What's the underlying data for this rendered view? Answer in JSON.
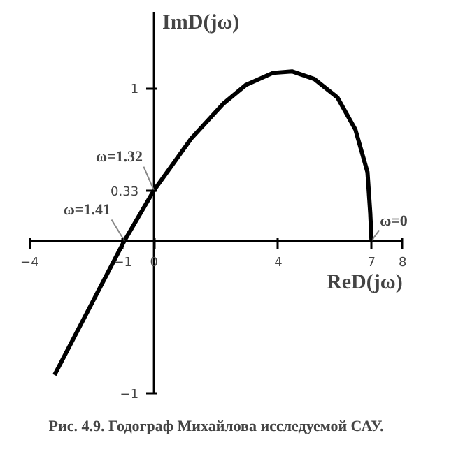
{
  "chart_data": {
    "type": "line",
    "xlabel": "ReD(jω)",
    "ylabel": "ImD(jω)",
    "series": [
      {
        "color": "#000000",
        "x": [
          7,
          6.96,
          6.87,
          6.48,
          5.9,
          5.16,
          4.44,
          3.83,
          2.95,
          2.24,
          1.2,
          0,
          -0.95,
          -3.2
        ],
        "values": [
          0,
          0.18,
          0.45,
          0.73,
          0.94,
          1.06,
          1.11,
          1.1,
          1.02,
          0.9,
          0.67,
          0.33,
          0,
          -0.88
        ]
      }
    ],
    "xlim": [
      -4,
      8
    ],
    "ylim": [
      -1,
      1.5
    ],
    "xticks": [
      -4,
      -1,
      0,
      4,
      7,
      8
    ],
    "yticks": [
      -1,
      0.33,
      1
    ],
    "marker": "none",
    "line_style": "solid",
    "annotations": [
      {
        "text": "ω=1.32",
        "x": 0,
        "y": 0.33
      },
      {
        "text": "ω=1.41",
        "x": -0.95,
        "y": 0
      },
      {
        "text": "ω=0",
        "x": 7,
        "y": 0
      },
      "Рис. 4.9. Годограф Михайлова исследуемой САУ."
    ]
  }
}
